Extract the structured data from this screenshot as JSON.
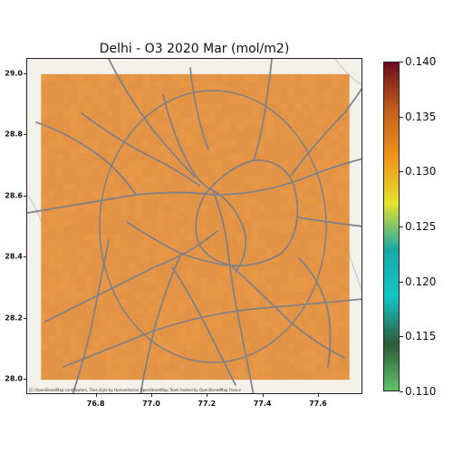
{
  "title": "Delhi - O3 2020 Mar (mol/m2)",
  "map": {
    "attribution": "(C) OpenStreetMap contributors, Tiles style by Humanitarian OpenStreetMap Team hosted by OpenStreetMap France",
    "basemap": "openstreetmap-hot",
    "data_color": "#e4903d",
    "road_color": "#7d7f86"
  },
  "chart_data": {
    "type": "heatmap",
    "title": "Delhi - O3 2020 Mar (mol/m2)",
    "xlabel": "",
    "ylabel": "",
    "x_ticks": [
      "76.8",
      "77.0",
      "77.2",
      "77.4",
      "77.6"
    ],
    "y_ticks": [
      "29.0",
      "28.8",
      "28.6",
      "28.4",
      "28.2",
      "28.0"
    ],
    "xlim": [
      76.55,
      77.76
    ],
    "ylim": [
      27.95,
      29.05
    ],
    "data_extent": {
      "lon": [
        76.6,
        77.71
      ],
      "lat": [
        28.0,
        29.0
      ]
    },
    "approx_value": 0.1355,
    "colorbar": {
      "min": 0.11,
      "max": 0.14,
      "ticks": [
        "0.140",
        "0.135",
        "0.130",
        "0.125",
        "0.120",
        "0.115",
        "0.110"
      ],
      "colors": [
        "#5ec46a",
        "#2e5a38",
        "#13c6c6",
        "#1aa7a6",
        "#e6e22c",
        "#f0921c",
        "#c25d1c",
        "#6b0a1c"
      ]
    }
  }
}
